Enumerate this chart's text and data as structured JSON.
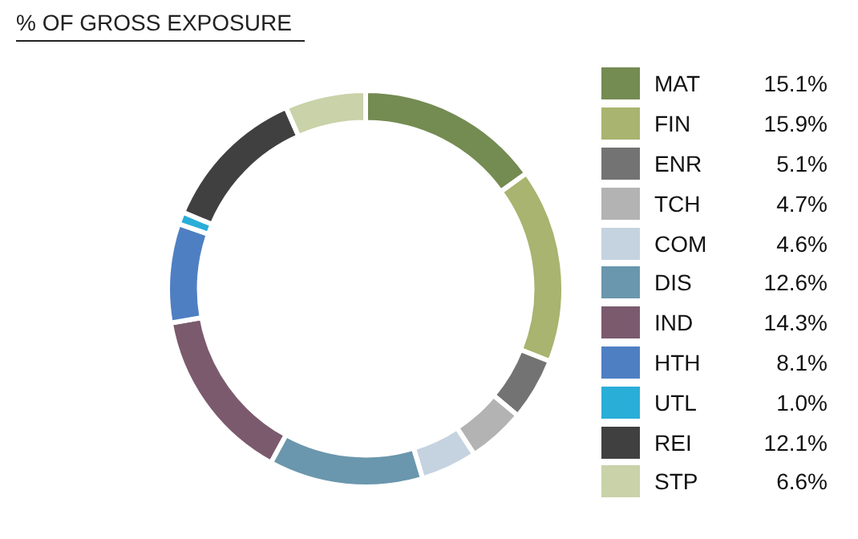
{
  "chart_data": {
    "type": "donut",
    "title": "% OF GROSS EXPOSURE",
    "categories": [
      "MAT",
      "FIN",
      "ENR",
      "TCH",
      "COM",
      "DIS",
      "IND",
      "HTH",
      "UTL",
      "REI",
      "STP"
    ],
    "values": [
      15.1,
      15.9,
      5.1,
      4.7,
      4.6,
      12.6,
      14.3,
      8.1,
      1.0,
      12.1,
      6.6
    ],
    "colors": [
      "#748b52",
      "#a8b46f",
      "#737373",
      "#b3b3b3",
      "#c5d3e0",
      "#6a97ad",
      "#7b5a6e",
      "#4f7fc3",
      "#29aed8",
      "#404040",
      "#c9d2a8"
    ],
    "value_labels": [
      "15.1%",
      "15.9%",
      "5.1%",
      "4.7%",
      "4.6%",
      "12.6%",
      "14.3%",
      "8.1%",
      "1.0%",
      "12.1%",
      "6.6%"
    ],
    "legend": "right"
  }
}
